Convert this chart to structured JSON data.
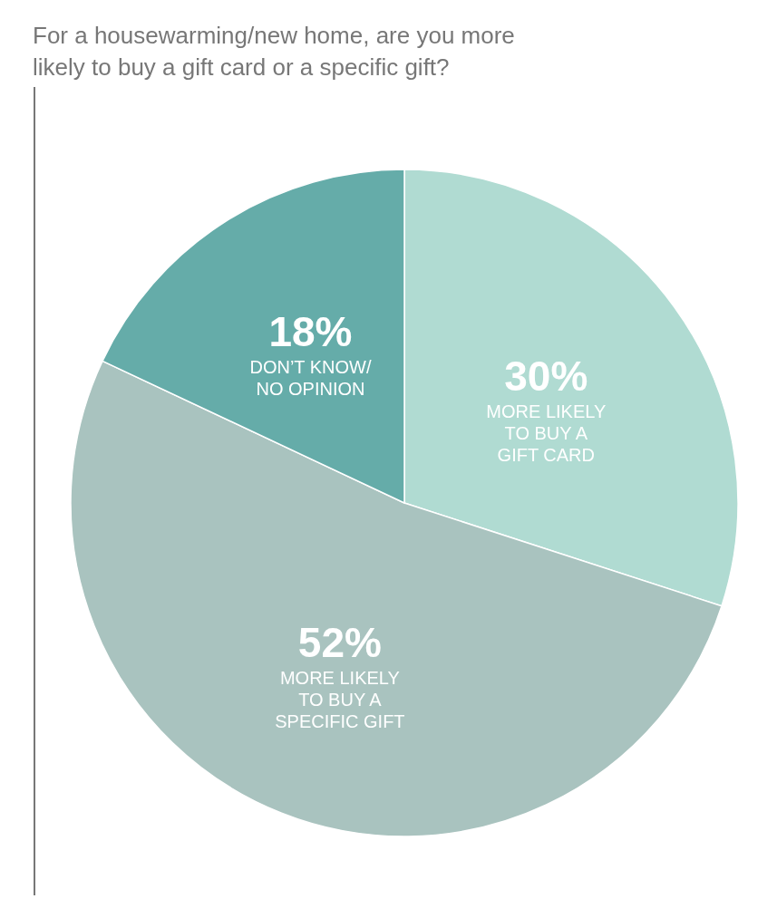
{
  "chart_data": {
    "type": "pie",
    "title": "For a housewarming/new home, are you more likely to buy a gift card or a specific gift?",
    "categories": [
      "MORE LIKELY\nTO BUY A\nGIFT CARD",
      "MORE LIKELY\nTO BUY A\nSPECIFIC GIFT",
      "DON’T KNOW/\nNO OPINION"
    ],
    "values": [
      30,
      52,
      18
    ],
    "colors": [
      "#b0dbd2",
      "#a9c3bf",
      "#65aca9"
    ],
    "value_labels": [
      "30%",
      "52%",
      "18%"
    ]
  }
}
